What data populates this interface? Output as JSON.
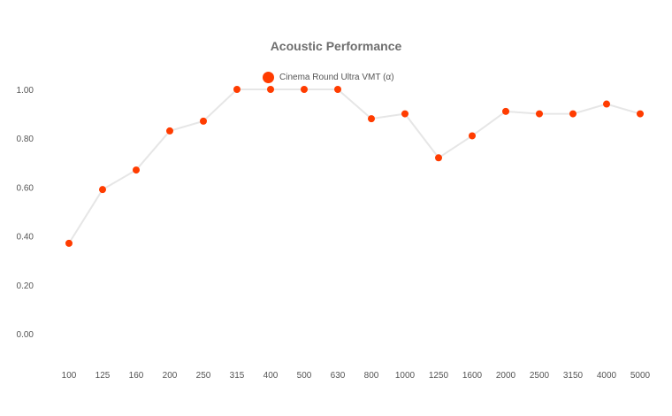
{
  "colors": {
    "marker": "#ff3c00",
    "line": "#e6e6e6",
    "text": "#555555",
    "title": "#6e6e6e"
  },
  "chart_data": {
    "type": "line",
    "title": "Acoustic Performance",
    "xlabel": "",
    "ylabel": "",
    "categories": [
      "100",
      "125",
      "160",
      "200",
      "250",
      "315",
      "400",
      "500",
      "630",
      "800",
      "1000",
      "1250",
      "1600",
      "2000",
      "2500",
      "3150",
      "4000",
      "5000"
    ],
    "series": [
      {
        "name": "Cinema Round Ultra VMT (α)",
        "values": [
          0.37,
          0.59,
          0.67,
          0.83,
          0.87,
          1.0,
          1.0,
          1.0,
          1.0,
          0.88,
          0.9,
          0.72,
          0.81,
          0.91,
          0.9,
          0.9,
          0.94,
          0.9
        ]
      }
    ],
    "yticks": [
      "0.00",
      "0.20",
      "0.40",
      "0.60",
      "0.80",
      "1.00"
    ],
    "ylim": [
      -0.1,
      1.1
    ],
    "grid": false,
    "legend_position": "top-center"
  }
}
